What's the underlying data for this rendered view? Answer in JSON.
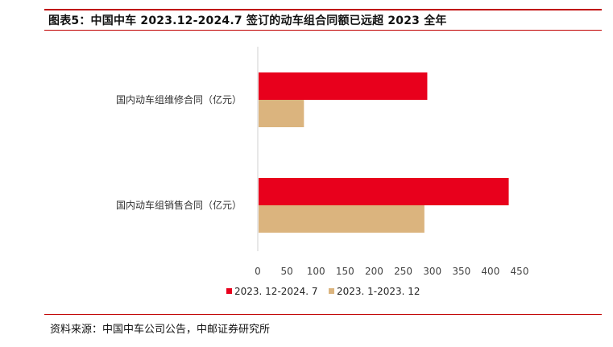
{
  "header": {
    "title": "图表5：中国中车 2023.12-2024.7 签订的动车组合同额已远超 2023 全年"
  },
  "footer": {
    "source": "资料来源：中国中车公司公告，中邮证券研究所"
  },
  "colors": {
    "rule": "#c00000",
    "series_1": "#e8001c",
    "series_2": "#dbb47e",
    "axis": "#d0d0d0"
  },
  "chart_data": {
    "type": "bar",
    "orientation": "horizontal",
    "categories": [
      "国内动车组维修合同（亿元）",
      "国内动车组销售合同（亿元）"
    ],
    "series": [
      {
        "name": "2023. 12-2024. 7",
        "values": [
          290,
          430
        ]
      },
      {
        "name": "2023. 1-2023. 12",
        "values": [
          78,
          285
        ]
      }
    ],
    "xlim": [
      0,
      450
    ],
    "xticks": [
      0,
      50,
      100,
      150,
      200,
      250,
      300,
      350,
      400,
      450
    ],
    "title": "",
    "xlabel": "",
    "ylabel": "",
    "grid": false,
    "legend_position": "bottom"
  }
}
